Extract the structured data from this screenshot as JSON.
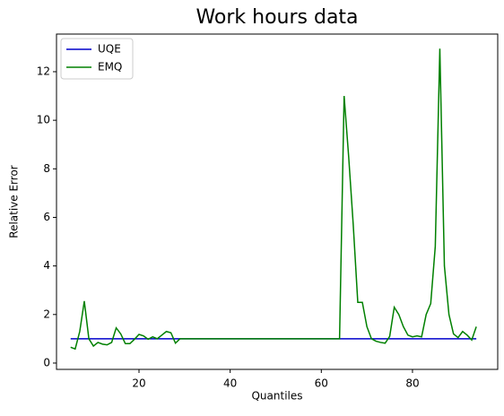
{
  "chart_data": {
    "type": "line",
    "title": "Work hours data",
    "xlabel": "Quantiles",
    "ylabel": "Relative Error",
    "x": [
      5,
      6,
      7,
      8,
      9,
      10,
      11,
      12,
      13,
      14,
      15,
      16,
      17,
      18,
      19,
      20,
      21,
      22,
      23,
      24,
      25,
      26,
      27,
      28,
      29,
      30,
      31,
      32,
      33,
      34,
      35,
      36,
      37,
      38,
      39,
      40,
      41,
      42,
      43,
      44,
      45,
      46,
      47,
      48,
      49,
      50,
      51,
      52,
      53,
      54,
      55,
      56,
      57,
      58,
      59,
      60,
      61,
      62,
      63,
      64,
      65,
      66,
      67,
      68,
      69,
      70,
      71,
      72,
      73,
      74,
      75,
      76,
      77,
      78,
      79,
      80,
      81,
      82,
      83,
      84,
      85,
      86,
      87,
      88,
      89,
      90,
      91,
      92,
      93,
      94
    ],
    "series": [
      {
        "name": "UQE",
        "color": "#0000cc",
        "values": [
          1,
          1,
          1,
          1,
          1,
          1,
          1,
          1,
          1,
          1,
          1,
          1,
          1,
          1,
          1,
          1,
          1,
          1,
          1,
          1,
          1,
          1,
          1,
          1,
          1,
          1,
          1,
          1,
          1,
          1,
          1,
          1,
          1,
          1,
          1,
          1,
          1,
          1,
          1,
          1,
          1,
          1,
          1,
          1,
          1,
          1,
          1,
          1,
          1,
          1,
          1,
          1,
          1,
          1,
          1,
          1,
          1,
          1,
          1,
          1,
          1,
          1,
          1,
          1,
          1,
          1,
          1,
          1,
          1,
          1,
          1,
          1,
          1,
          1,
          1,
          1,
          1,
          1,
          1,
          1,
          1,
          1,
          1,
          1,
          1,
          1,
          1,
          1,
          1,
          1
        ]
      },
      {
        "name": "EMQ",
        "color": "#008000",
        "values": [
          0.65,
          0.58,
          1.3,
          2.55,
          1.0,
          0.7,
          0.85,
          0.78,
          0.75,
          0.85,
          1.45,
          1.2,
          0.8,
          0.8,
          0.98,
          1.18,
          1.12,
          0.98,
          1.08,
          1.0,
          1.15,
          1.3,
          1.25,
          0.82,
          1.0,
          1,
          1,
          1,
          1,
          1,
          1,
          1,
          1,
          1,
          1,
          1,
          1,
          1,
          1,
          1,
          1,
          1,
          1,
          1,
          1,
          1,
          1,
          1,
          1,
          1,
          1,
          1,
          1,
          1,
          1,
          1,
          1,
          1,
          1,
          1,
          11.0,
          8.5,
          5.7,
          2.5,
          2.5,
          1.5,
          1.0,
          0.9,
          0.85,
          0.82,
          1.1,
          2.3,
          2.0,
          1.5,
          1.15,
          1.08,
          1.12,
          1.08,
          2.0,
          2.45,
          4.8,
          12.95,
          4.0,
          2.0,
          1.2,
          1.05,
          1.3,
          1.15,
          0.95,
          1.5
        ]
      }
    ],
    "xlim": [
      1.9,
      98.7
    ],
    "ylim": [
      -0.26,
      13.55
    ],
    "xticks": [
      20,
      40,
      60,
      80
    ],
    "yticks": [
      0,
      2,
      4,
      6,
      8,
      10,
      12
    ],
    "legend": "upper left"
  }
}
